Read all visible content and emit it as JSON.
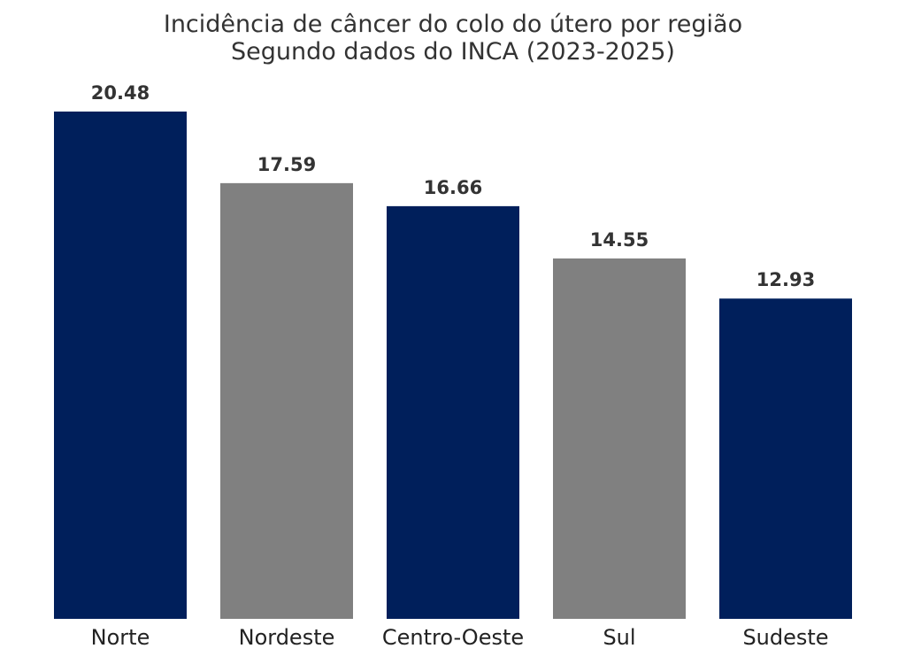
{
  "chart_data": {
    "type": "bar",
    "title": "Incidência de câncer do colo do útero por região",
    "subtitle": "Segundo dados do INCA (2023-2025)",
    "categories": [
      "Norte",
      "Nordeste",
      "Centro-Oeste",
      "Sul",
      "Sudeste"
    ],
    "values": [
      20.48,
      17.59,
      16.66,
      14.55,
      12.93
    ],
    "value_labels": [
      "20.48",
      "17.59",
      "16.66",
      "14.55",
      "12.93"
    ],
    "colors": [
      "#001f5b",
      "#808080",
      "#001f5b",
      "#808080",
      "#001f5b"
    ],
    "xlabel": "",
    "ylabel": "",
    "ylim": [
      0,
      20.48
    ],
    "grid": false,
    "legend": "none"
  }
}
